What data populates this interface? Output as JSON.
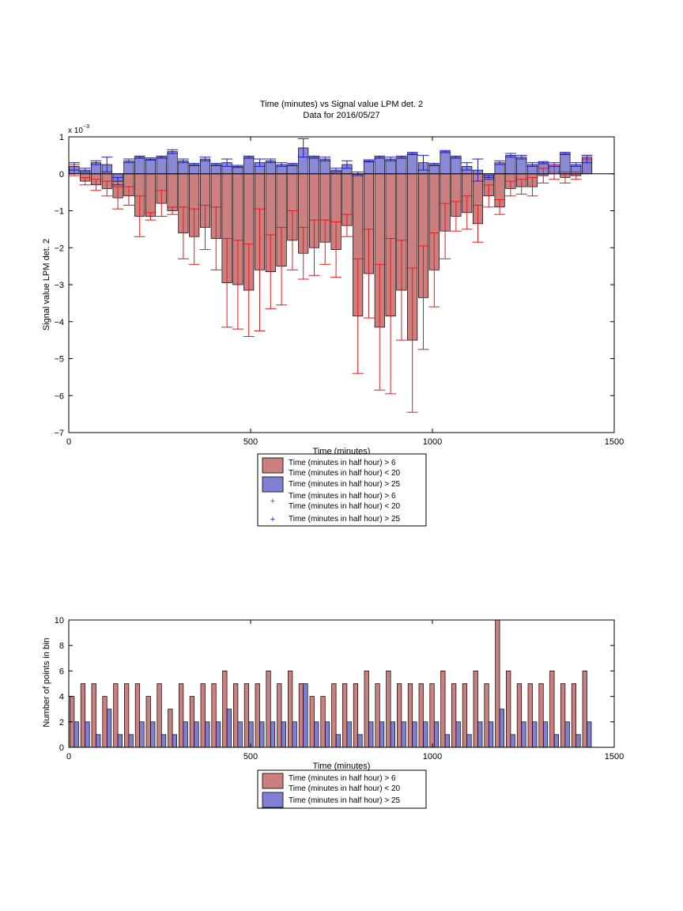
{
  "colors": {
    "red_fill": "#cc7f7f",
    "blue_fill": "#7f7fd4",
    "red_err": "#e01b1b",
    "blue_err": "#1b1bd9"
  },
  "chart_data": [
    {
      "type": "bar",
      "title": "Time (minutes) vs Signal value LPM det. 2",
      "subtitle": "Data for 2016/05/27",
      "xlabel": "Time (minutes)",
      "ylabel": "Signal value LPM det. 2",
      "y_exponent_label": "x 10",
      "y_exponent": "−3",
      "xlim": [
        0,
        1500
      ],
      "ylim": [
        -7,
        1
      ],
      "xticks": [
        "0",
        "500",
        "1000",
        "1500"
      ],
      "yticks": [
        "1",
        "0",
        "−1",
        "−2",
        "−3",
        "−4",
        "−5",
        "−6",
        "−7"
      ],
      "x": [
        15,
        45,
        75,
        105,
        135,
        165,
        195,
        225,
        255,
        285,
        315,
        345,
        375,
        405,
        435,
        465,
        495,
        525,
        555,
        585,
        615,
        645,
        675,
        705,
        735,
        765,
        795,
        825,
        855,
        885,
        915,
        945,
        975,
        1005,
        1035,
        1065,
        1095,
        1125,
        1155,
        1185,
        1215,
        1245,
        1275,
        1305,
        1335,
        1365,
        1395,
        1425
      ],
      "series": [
        {
          "name": "Time (minutes in half hour) > 6\nTime (minutes in half hour) < 20",
          "values": [
            0.1,
            -0.2,
            -0.3,
            -0.4,
            -0.65,
            -0.6,
            -1.15,
            -1.15,
            -0.8,
            -1.0,
            -1.6,
            -1.7,
            -1.45,
            -1.75,
            -2.95,
            -3.0,
            -3.15,
            -2.6,
            -2.65,
            -2.5,
            -1.8,
            -2.15,
            -2.0,
            -1.85,
            -2.05,
            -1.4,
            -3.85,
            -2.7,
            -4.15,
            -3.85,
            -3.15,
            -4.5,
            -3.35,
            -2.6,
            -1.55,
            -1.15,
            -1.05,
            -1.35,
            -0.6,
            -0.9,
            -0.4,
            -0.35,
            -0.35,
            -0.05,
            0.05,
            -0.1,
            -0.05,
            0.45
          ],
          "errors": [
            0.15,
            0.1,
            0.15,
            0.2,
            0.3,
            0.25,
            0.55,
            0.1,
            0.35,
            0.1,
            0.7,
            0.75,
            0.6,
            0.85,
            1.2,
            1.2,
            1.25,
            1.65,
            1.0,
            1.05,
            0.8,
            0.7,
            0.75,
            0.6,
            0.75,
            0.3,
            1.55,
            1.2,
            1.7,
            2.1,
            1.35,
            1.95,
            1.4,
            1.0,
            0.75,
            0.4,
            0.45,
            0.5,
            0.3,
            0.2,
            0.2,
            0.2,
            0.25,
            0.2,
            0.2,
            0.15,
            0.1,
            0.05
          ]
        },
        {
          "name": "Time (minutes in half hour) > 25",
          "values": [
            0.2,
            0.1,
            0.3,
            0.25,
            -0.2,
            0.35,
            0.45,
            0.4,
            0.45,
            0.6,
            0.35,
            0.25,
            0.4,
            0.25,
            0.3,
            0.2,
            0.45,
            0.3,
            0.35,
            0.25,
            0.25,
            0.7,
            0.45,
            0.4,
            0.1,
            0.25,
            0.0,
            0.35,
            0.45,
            0.4,
            0.45,
            0.55,
            0.3,
            0.25,
            0.6,
            0.45,
            0.2,
            0.1,
            -0.1,
            0.3,
            0.5,
            0.45,
            0.25,
            0.3,
            0.25,
            0.55,
            0.25,
            0.4
          ],
          "errors": [
            0.1,
            0.05,
            0.05,
            0.2,
            0.1,
            0.05,
            0.03,
            0.03,
            0.03,
            0.05,
            0.05,
            0.03,
            0.05,
            0.03,
            0.1,
            0.03,
            0.03,
            0.1,
            0.05,
            0.05,
            0.03,
            0.25,
            0.03,
            0.05,
            0.05,
            0.1,
            0.05,
            0.03,
            0.03,
            0.05,
            0.03,
            0.03,
            0.2,
            0.03,
            0.03,
            0.03,
            0.1,
            0.3,
            0.05,
            0.05,
            0.05,
            0.05,
            0.05,
            0.03,
            0.05,
            0.03,
            0.05,
            0.1
          ]
        }
      ],
      "legend": [
        "Time (minutes in half hour) > 6\nTime (minutes in half hour) < 20",
        "Time (minutes in half hour) > 25",
        "Time (minutes in half hour) > 6\nTime (minutes in half hour) < 20",
        "Time (minutes in half hour) > 25"
      ],
      "legend_placement": "below"
    },
    {
      "type": "bar",
      "title": "",
      "xlabel": "Time (minutes)",
      "ylabel": "Number of points in bin",
      "xlim": [
        0,
        1500
      ],
      "ylim": [
        0,
        10
      ],
      "xticks": [
        "0",
        "500",
        "1000",
        "1500"
      ],
      "yticks": [
        "10",
        "8",
        "6",
        "4",
        "2",
        "0"
      ],
      "x": [
        15,
        45,
        75,
        105,
        135,
        165,
        195,
        225,
        255,
        285,
        315,
        345,
        375,
        405,
        435,
        465,
        495,
        525,
        555,
        585,
        615,
        645,
        675,
        705,
        735,
        765,
        795,
        825,
        855,
        885,
        915,
        945,
        975,
        1005,
        1035,
        1065,
        1095,
        1125,
        1155,
        1185,
        1215,
        1245,
        1275,
        1305,
        1335,
        1365,
        1395,
        1425
      ],
      "series": [
        {
          "name": "Time (minutes in half hour) > 6\nTime (minutes in half hour) < 20",
          "values": [
            4,
            5,
            5,
            4,
            5,
            5,
            5,
            4,
            5,
            3,
            5,
            4,
            5,
            5,
            6,
            5,
            5,
            5,
            6,
            5,
            6,
            5,
            4,
            4,
            5,
            5,
            5,
            6,
            5,
            6,
            5,
            5,
            5,
            5,
            6,
            5,
            5,
            6,
            5,
            10,
            6,
            5,
            5,
            5,
            6,
            5,
            5,
            6
          ]
        },
        {
          "name": "Time (minutes in half hour) > 25",
          "values": [
            2,
            2,
            1,
            3,
            1,
            1,
            2,
            2,
            1,
            1,
            2,
            2,
            2,
            2,
            3,
            2,
            2,
            2,
            2,
            2,
            2,
            5,
            2,
            2,
            1,
            2,
            1,
            2,
            2,
            2,
            2,
            2,
            2,
            2,
            1,
            2,
            1,
            2,
            2,
            3,
            1,
            2,
            2,
            2,
            1,
            2,
            1,
            2
          ]
        }
      ],
      "legend": [
        "Time (minutes in half hour) > 6\nTime (minutes in half hour) < 20",
        "Time (minutes in half hour) > 25"
      ],
      "legend_placement": "below"
    }
  ]
}
